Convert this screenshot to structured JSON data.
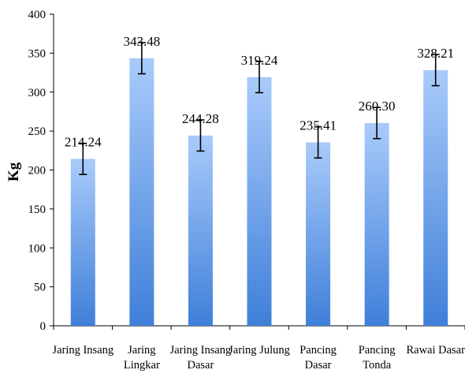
{
  "chart_data": {
    "type": "bar",
    "title": "",
    "xlabel": "",
    "ylabel": "Kg",
    "ylim": [
      0,
      400
    ],
    "yticks": [
      0,
      50,
      100,
      150,
      200,
      250,
      300,
      350,
      400
    ],
    "grid": false,
    "legend": "none",
    "categories": [
      [
        "Jaring Insang"
      ],
      [
        "Jaring",
        "Lingkar"
      ],
      [
        "Jaring Insang",
        "Dasar"
      ],
      [
        "Jaring Julung"
      ],
      [
        "Pancing",
        "Dasar"
      ],
      [
        "Pancing",
        "Tonda"
      ],
      [
        "Rawai Dasar"
      ]
    ],
    "values": [
      214.24,
      343.48,
      244.28,
      319.24,
      235.41,
      260.3,
      328.21
    ],
    "data_labels": [
      "214.24",
      "343.48",
      "244.28",
      "319.24",
      "235.41",
      "260.30",
      "328.21"
    ],
    "error": [
      20,
      20,
      20,
      20,
      20,
      20,
      20
    ],
    "colors": {
      "bar_top": "#a9cbfb",
      "bar_bottom": "#3f7fd9",
      "error_bar": "#000000",
      "axis": "#000000"
    }
  }
}
